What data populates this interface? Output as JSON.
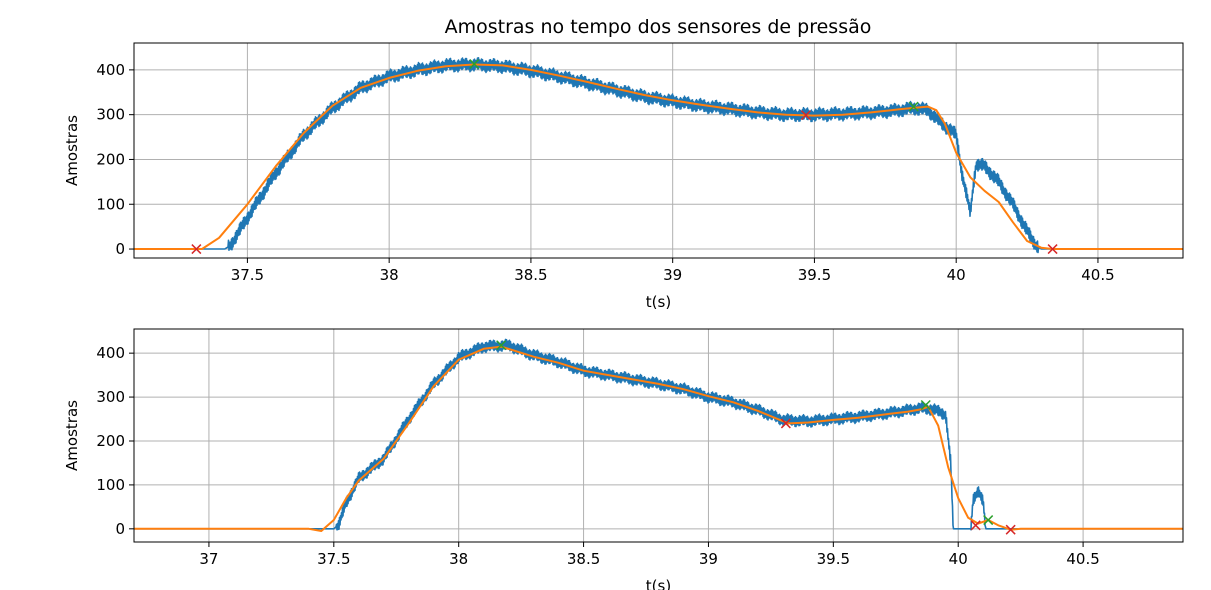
{
  "title": "Amostras no tempo dos sensores de pressão",
  "colors": {
    "raw": "#1f77b4",
    "smooth": "#ff7f0e",
    "peak_marker": "#2ca02c",
    "valley_marker": "#d62728",
    "grid": "#b0b0b0"
  },
  "chart_data": [
    {
      "type": "line",
      "xlabel": "t(s)",
      "ylabel": "Amostras",
      "xlim": [
        37.1,
        40.8
      ],
      "ylim": [
        -20,
        460
      ],
      "xticks": [
        37.5,
        38.0,
        38.5,
        39.0,
        39.5,
        40.0,
        40.5
      ],
      "yticks": [
        0,
        100,
        200,
        300,
        400
      ],
      "grid": true,
      "series": [
        {
          "role": "raw",
          "noise": 18,
          "points": [
            [
              37.1,
              0
            ],
            [
              37.3,
              0
            ],
            [
              37.42,
              0
            ],
            [
              37.44,
              8
            ],
            [
              37.5,
              70
            ],
            [
              37.6,
              170
            ],
            [
              37.7,
              255
            ],
            [
              37.8,
              315
            ],
            [
              37.9,
              360
            ],
            [
              38.0,
              385
            ],
            [
              38.1,
              400
            ],
            [
              38.2,
              410
            ],
            [
              38.3,
              412
            ],
            [
              38.4,
              408
            ],
            [
              38.5,
              398
            ],
            [
              38.6,
              385
            ],
            [
              38.7,
              370
            ],
            [
              38.8,
              355
            ],
            [
              38.9,
              340
            ],
            [
              39.0,
              330
            ],
            [
              39.1,
              320
            ],
            [
              39.2,
              313
            ],
            [
              39.3,
              305
            ],
            [
              39.4,
              300
            ],
            [
              39.5,
              300
            ],
            [
              39.6,
              302
            ],
            [
              39.7,
              305
            ],
            [
              39.8,
              310
            ],
            [
              39.85,
              315
            ],
            [
              39.9,
              310
            ],
            [
              39.95,
              280
            ],
            [
              40.0,
              255
            ],
            [
              40.02,
              170
            ],
            [
              40.04,
              110
            ],
            [
              40.05,
              80
            ],
            [
              40.06,
              140
            ],
            [
              40.07,
              190
            ],
            [
              40.1,
              185
            ],
            [
              40.15,
              150
            ],
            [
              40.2,
              100
            ],
            [
              40.25,
              40
            ],
            [
              40.28,
              10
            ],
            [
              40.3,
              0
            ],
            [
              40.8,
              0
            ]
          ]
        },
        {
          "role": "smooth",
          "points": [
            [
              37.1,
              0
            ],
            [
              37.3,
              0
            ],
            [
              37.34,
              0
            ],
            [
              37.4,
              25
            ],
            [
              37.5,
              100
            ],
            [
              37.6,
              185
            ],
            [
              37.7,
              260
            ],
            [
              37.8,
              320
            ],
            [
              37.9,
              360
            ],
            [
              38.0,
              382
            ],
            [
              38.1,
              398
            ],
            [
              38.2,
              408
            ],
            [
              38.3,
              412
            ],
            [
              38.4,
              410
            ],
            [
              38.5,
              400
            ],
            [
              38.6,
              387
            ],
            [
              38.7,
              373
            ],
            [
              38.8,
              358
            ],
            [
              38.9,
              344
            ],
            [
              39.0,
              332
            ],
            [
              39.1,
              322
            ],
            [
              39.2,
              313
            ],
            [
              39.3,
              305
            ],
            [
              39.4,
              300
            ],
            [
              39.5,
              298
            ],
            [
              39.6,
              300
            ],
            [
              39.7,
              305
            ],
            [
              39.8,
              312
            ],
            [
              39.85,
              315
            ],
            [
              39.9,
              318
            ],
            [
              39.93,
              310
            ],
            [
              39.96,
              280
            ],
            [
              40.0,
              215
            ],
            [
              40.05,
              160
            ],
            [
              40.1,
              130
            ],
            [
              40.15,
              105
            ],
            [
              40.2,
              60
            ],
            [
              40.25,
              18
            ],
            [
              40.3,
              3
            ],
            [
              40.34,
              0
            ],
            [
              40.8,
              0
            ]
          ]
        }
      ],
      "markers": [
        {
          "kind": "valley",
          "x": 37.32,
          "y": 0
        },
        {
          "kind": "peak",
          "x": 38.3,
          "y": 413
        },
        {
          "kind": "valley",
          "x": 39.47,
          "y": 299
        },
        {
          "kind": "peak",
          "x": 39.85,
          "y": 318
        },
        {
          "kind": "valley",
          "x": 40.34,
          "y": 0
        }
      ]
    },
    {
      "type": "line",
      "xlabel": "t(s)",
      "ylabel": "Amostras",
      "xlim": [
        36.7,
        40.9
      ],
      "ylim": [
        -30,
        455
      ],
      "xticks": [
        37.0,
        37.5,
        38.0,
        38.5,
        39.0,
        39.5,
        40.0,
        40.5
      ],
      "yticks": [
        0,
        100,
        200,
        300,
        400
      ],
      "grid": true,
      "series": [
        {
          "role": "raw",
          "noise": 16,
          "points": [
            [
              36.7,
              0
            ],
            [
              37.45,
              0
            ],
            [
              37.5,
              0
            ],
            [
              37.52,
              10
            ],
            [
              37.55,
              60
            ],
            [
              37.6,
              115
            ],
            [
              37.7,
              160
            ],
            [
              37.8,
              250
            ],
            [
              37.9,
              330
            ],
            [
              38.0,
              390
            ],
            [
              38.1,
              415
            ],
            [
              38.2,
              418
            ],
            [
              38.3,
              395
            ],
            [
              38.4,
              380
            ],
            [
              38.5,
              360
            ],
            [
              38.6,
              350
            ],
            [
              38.7,
              340
            ],
            [
              38.8,
              330
            ],
            [
              38.9,
              318
            ],
            [
              39.0,
              300
            ],
            [
              39.1,
              288
            ],
            [
              39.2,
              270
            ],
            [
              39.3,
              248
            ],
            [
              39.4,
              245
            ],
            [
              39.5,
              250
            ],
            [
              39.6,
              255
            ],
            [
              39.7,
              262
            ],
            [
              39.8,
              270
            ],
            [
              39.85,
              275
            ],
            [
              39.9,
              272
            ],
            [
              39.95,
              260
            ],
            [
              39.97,
              150
            ],
            [
              39.98,
              0
            ],
            [
              40.05,
              0
            ],
            [
              40.06,
              70
            ],
            [
              40.08,
              85
            ],
            [
              40.1,
              60
            ],
            [
              40.11,
              0
            ],
            [
              40.9,
              0
            ]
          ]
        },
        {
          "role": "smooth",
          "points": [
            [
              36.7,
              0
            ],
            [
              37.4,
              0
            ],
            [
              37.45,
              -5
            ],
            [
              37.5,
              20
            ],
            [
              37.55,
              70
            ],
            [
              37.6,
              110
            ],
            [
              37.7,
              160
            ],
            [
              37.8,
              240
            ],
            [
              37.9,
              325
            ],
            [
              38.0,
              385
            ],
            [
              38.1,
              410
            ],
            [
              38.17,
              415
            ],
            [
              38.3,
              392
            ],
            [
              38.4,
              378
            ],
            [
              38.5,
              360
            ],
            [
              38.6,
              350
            ],
            [
              38.7,
              340
            ],
            [
              38.8,
              330
            ],
            [
              38.9,
              318
            ],
            [
              39.0,
              302
            ],
            [
              39.1,
              288
            ],
            [
              39.2,
              268
            ],
            [
              39.32,
              240
            ],
            [
              39.4,
              242
            ],
            [
              39.5,
              248
            ],
            [
              39.6,
              253
            ],
            [
              39.7,
              260
            ],
            [
              39.8,
              267
            ],
            [
              39.85,
              272
            ],
            [
              39.88,
              278
            ],
            [
              39.92,
              235
            ],
            [
              39.96,
              140
            ],
            [
              40.0,
              70
            ],
            [
              40.04,
              25
            ],
            [
              40.08,
              12
            ],
            [
              40.12,
              20
            ],
            [
              40.16,
              8
            ],
            [
              40.21,
              -2
            ],
            [
              40.25,
              0
            ],
            [
              40.9,
              0
            ]
          ]
        }
      ],
      "markers": [
        {
          "kind": "peak",
          "x": 38.17,
          "y": 418
        },
        {
          "kind": "valley",
          "x": 39.31,
          "y": 240
        },
        {
          "kind": "peak",
          "x": 39.87,
          "y": 282
        },
        {
          "kind": "valley",
          "x": 40.07,
          "y": 8
        },
        {
          "kind": "peak",
          "x": 40.12,
          "y": 20
        },
        {
          "kind": "valley",
          "x": 40.21,
          "y": -2
        }
      ]
    }
  ]
}
